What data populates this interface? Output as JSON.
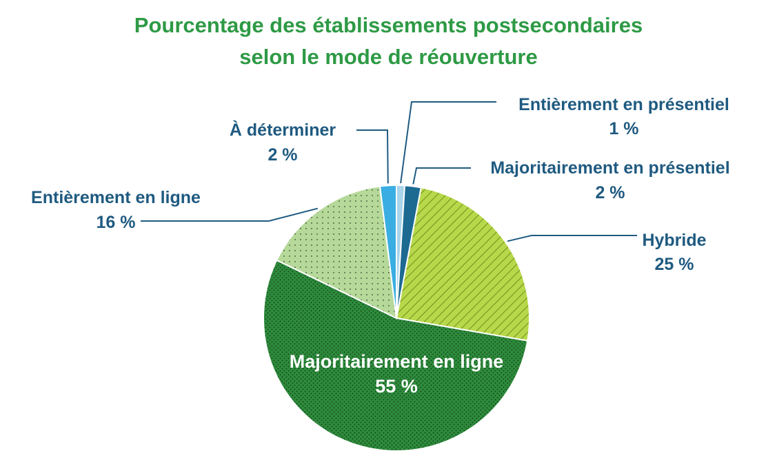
{
  "chart_data": {
    "type": "pie",
    "title_lines": [
      "Pourcentage des établissements postsecondaires",
      "selon le mode de réouverture"
    ],
    "unit": "%",
    "slices": [
      {
        "name": "Entièrement en présentiel",
        "value": 1,
        "value_label": "1 %",
        "color": "#a9d4ea",
        "pattern": "solid"
      },
      {
        "name": "Majoritairement en présentiel",
        "value": 2,
        "value_label": "2 %",
        "color": "#1c6a92",
        "pattern": "solid"
      },
      {
        "name": "Hybride",
        "value": 25,
        "value_label": "25 %",
        "color": "#b7d84a",
        "pattern": "hatch"
      },
      {
        "name": "Majoritairement en ligne",
        "value": 55,
        "value_label": "55 %",
        "color": "#2e8b3c",
        "pattern": "dots-dense"
      },
      {
        "name": "Entièrement en ligne",
        "value": 16,
        "value_label": "16 %",
        "color": "#b6d99a",
        "pattern": "dots-sparse"
      },
      {
        "name": "À déterminer",
        "value": 2,
        "value_label": "2 %",
        "color": "#3aaee2",
        "pattern": "solid"
      }
    ]
  }
}
